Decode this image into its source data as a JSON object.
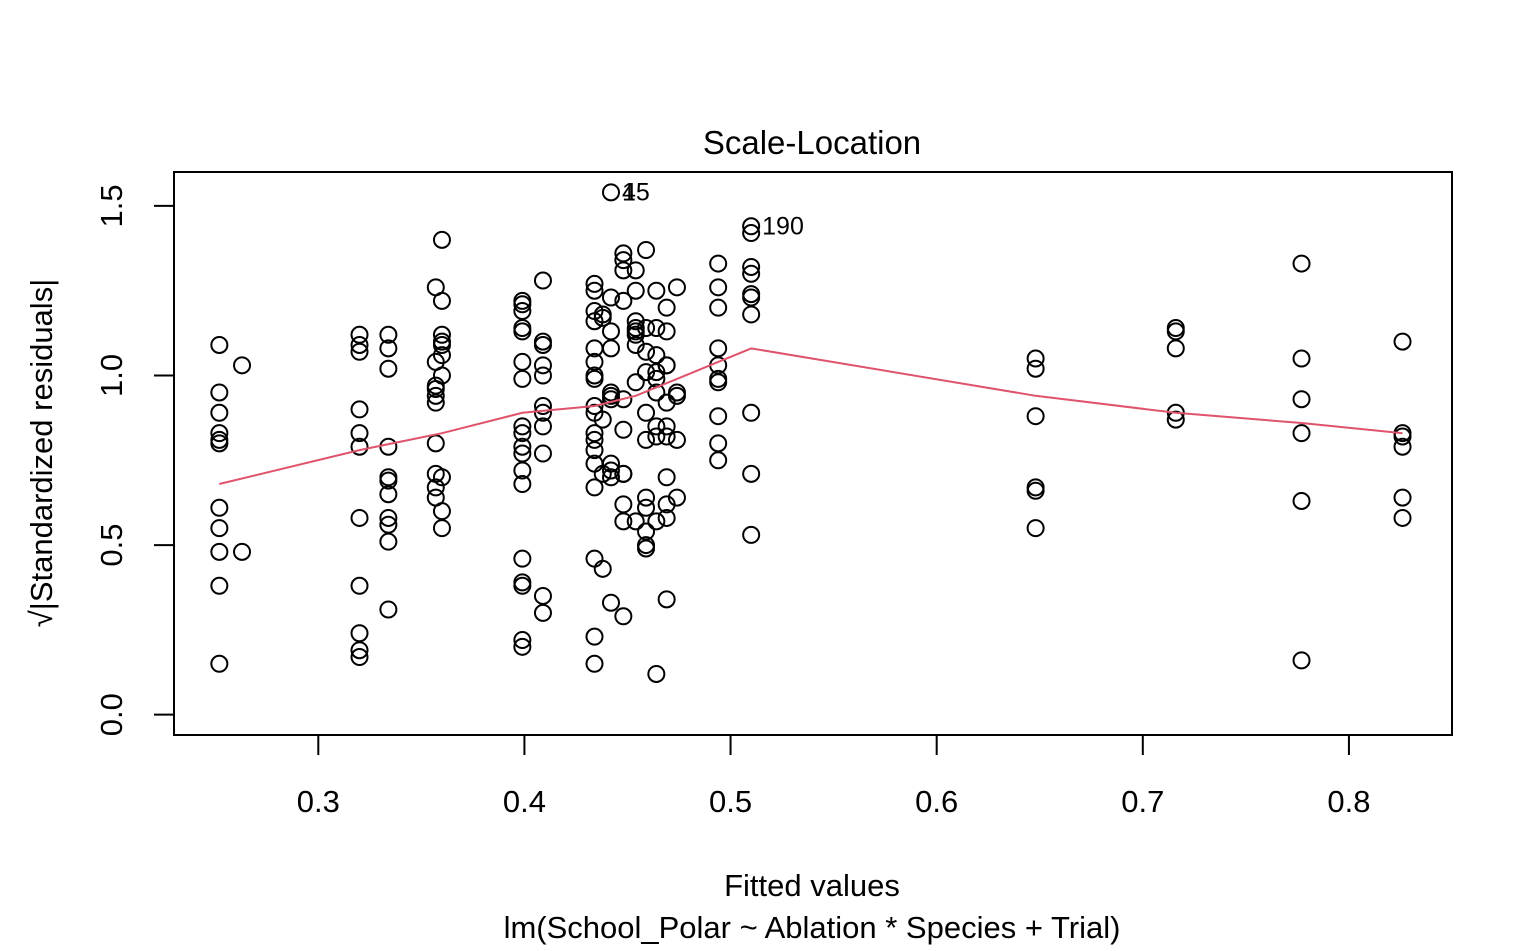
{
  "chart_data": {
    "type": "scatter",
    "title": "Scale-Location",
    "xlabel": "Fitted values",
    "subtitle": "lm(School_Polar ~ Ablation * Species + Trial)",
    "ylabel": "√|Standardized residuals|",
    "xlim": [
      0.23,
      0.85
    ],
    "ylim": [
      -0.06,
      1.6
    ],
    "xticks": [
      0.3,
      0.4,
      0.5,
      0.6,
      0.7,
      0.8
    ],
    "xtick_labels": [
      "0.3",
      "0.4",
      "0.5",
      "0.6",
      "0.7",
      "0.8"
    ],
    "yticks": [
      0.0,
      0.5,
      1.0,
      1.5
    ],
    "ytick_labels": [
      "0.0",
      "0.5",
      "1.0",
      "1.5"
    ],
    "grid": false,
    "point_style": "open-circle",
    "smoother_color": "#DF536B",
    "points": [
      {
        "x": 0.252,
        "y": 1.09
      },
      {
        "x": 0.252,
        "y": 0.95
      },
      {
        "x": 0.252,
        "y": 0.89
      },
      {
        "x": 0.252,
        "y": 0.83
      },
      {
        "x": 0.252,
        "y": 0.81
      },
      {
        "x": 0.252,
        "y": 0.8
      },
      {
        "x": 0.252,
        "y": 0.61
      },
      {
        "x": 0.252,
        "y": 0.55
      },
      {
        "x": 0.252,
        "y": 0.48
      },
      {
        "x": 0.252,
        "y": 0.38
      },
      {
        "x": 0.252,
        "y": 0.15
      },
      {
        "x": 0.263,
        "y": 1.03
      },
      {
        "x": 0.263,
        "y": 0.48
      },
      {
        "x": 0.32,
        "y": 1.12
      },
      {
        "x": 0.32,
        "y": 1.09
      },
      {
        "x": 0.32,
        "y": 1.07
      },
      {
        "x": 0.32,
        "y": 0.9
      },
      {
        "x": 0.32,
        "y": 0.83
      },
      {
        "x": 0.32,
        "y": 0.79
      },
      {
        "x": 0.32,
        "y": 0.58
      },
      {
        "x": 0.32,
        "y": 0.38
      },
      {
        "x": 0.32,
        "y": 0.24
      },
      {
        "x": 0.32,
        "y": 0.19
      },
      {
        "x": 0.32,
        "y": 0.17
      },
      {
        "x": 0.334,
        "y": 1.12
      },
      {
        "x": 0.334,
        "y": 1.08
      },
      {
        "x": 0.334,
        "y": 1.02
      },
      {
        "x": 0.334,
        "y": 0.79
      },
      {
        "x": 0.334,
        "y": 0.7
      },
      {
        "x": 0.334,
        "y": 0.69
      },
      {
        "x": 0.334,
        "y": 0.65
      },
      {
        "x": 0.334,
        "y": 0.58
      },
      {
        "x": 0.334,
        "y": 0.56
      },
      {
        "x": 0.334,
        "y": 0.51
      },
      {
        "x": 0.334,
        "y": 0.31
      },
      {
        "x": 0.357,
        "y": 1.26
      },
      {
        "x": 0.357,
        "y": 1.04
      },
      {
        "x": 0.357,
        "y": 0.97
      },
      {
        "x": 0.357,
        "y": 0.96
      },
      {
        "x": 0.357,
        "y": 0.94
      },
      {
        "x": 0.357,
        "y": 0.92
      },
      {
        "x": 0.357,
        "y": 0.8
      },
      {
        "x": 0.357,
        "y": 0.71
      },
      {
        "x": 0.357,
        "y": 0.67
      },
      {
        "x": 0.357,
        "y": 0.64
      },
      {
        "x": 0.36,
        "y": 1.4
      },
      {
        "x": 0.36,
        "y": 1.22
      },
      {
        "x": 0.36,
        "y": 1.12
      },
      {
        "x": 0.36,
        "y": 1.1
      },
      {
        "x": 0.36,
        "y": 1.09
      },
      {
        "x": 0.36,
        "y": 1.06
      },
      {
        "x": 0.36,
        "y": 1.0
      },
      {
        "x": 0.36,
        "y": 0.7
      },
      {
        "x": 0.36,
        "y": 0.6
      },
      {
        "x": 0.36,
        "y": 0.55
      },
      {
        "x": 0.399,
        "y": 1.22
      },
      {
        "x": 0.399,
        "y": 1.21
      },
      {
        "x": 0.399,
        "y": 1.19
      },
      {
        "x": 0.399,
        "y": 1.14
      },
      {
        "x": 0.399,
        "y": 1.13
      },
      {
        "x": 0.399,
        "y": 1.04
      },
      {
        "x": 0.399,
        "y": 0.99
      },
      {
        "x": 0.399,
        "y": 0.85
      },
      {
        "x": 0.399,
        "y": 0.83
      },
      {
        "x": 0.399,
        "y": 0.79
      },
      {
        "x": 0.399,
        "y": 0.77
      },
      {
        "x": 0.399,
        "y": 0.72
      },
      {
        "x": 0.399,
        "y": 0.68
      },
      {
        "x": 0.399,
        "y": 0.46
      },
      {
        "x": 0.399,
        "y": 0.39
      },
      {
        "x": 0.399,
        "y": 0.38
      },
      {
        "x": 0.399,
        "y": 0.22
      },
      {
        "x": 0.399,
        "y": 0.2
      },
      {
        "x": 0.409,
        "y": 1.28
      },
      {
        "x": 0.409,
        "y": 1.1
      },
      {
        "x": 0.409,
        "y": 1.09
      },
      {
        "x": 0.409,
        "y": 1.03
      },
      {
        "x": 0.409,
        "y": 1.0
      },
      {
        "x": 0.409,
        "y": 0.91
      },
      {
        "x": 0.409,
        "y": 0.89
      },
      {
        "x": 0.409,
        "y": 0.85
      },
      {
        "x": 0.409,
        "y": 0.77
      },
      {
        "x": 0.409,
        "y": 0.35
      },
      {
        "x": 0.409,
        "y": 0.3
      },
      {
        "x": 0.434,
        "y": 1.27
      },
      {
        "x": 0.434,
        "y": 1.25
      },
      {
        "x": 0.434,
        "y": 1.19
      },
      {
        "x": 0.434,
        "y": 1.16
      },
      {
        "x": 0.434,
        "y": 1.08
      },
      {
        "x": 0.434,
        "y": 1.04
      },
      {
        "x": 0.434,
        "y": 1.0
      },
      {
        "x": 0.434,
        "y": 0.99
      },
      {
        "x": 0.434,
        "y": 0.91
      },
      {
        "x": 0.434,
        "y": 0.89
      },
      {
        "x": 0.434,
        "y": 0.83
      },
      {
        "x": 0.434,
        "y": 0.81
      },
      {
        "x": 0.434,
        "y": 0.78
      },
      {
        "x": 0.434,
        "y": 0.74
      },
      {
        "x": 0.434,
        "y": 0.67
      },
      {
        "x": 0.434,
        "y": 0.46
      },
      {
        "x": 0.434,
        "y": 0.23
      },
      {
        "x": 0.434,
        "y": 0.15
      },
      {
        "x": 0.438,
        "y": 1.18
      },
      {
        "x": 0.438,
        "y": 1.17
      },
      {
        "x": 0.438,
        "y": 0.87
      },
      {
        "x": 0.438,
        "y": 0.71
      },
      {
        "x": 0.438,
        "y": 0.43
      },
      {
        "x": 0.442,
        "y": 1.54
      },
      {
        "x": 0.442,
        "y": 1.23
      },
      {
        "x": 0.442,
        "y": 1.13
      },
      {
        "x": 0.442,
        "y": 1.08
      },
      {
        "x": 0.442,
        "y": 0.95
      },
      {
        "x": 0.442,
        "y": 0.94
      },
      {
        "x": 0.442,
        "y": 0.93
      },
      {
        "x": 0.442,
        "y": 0.74
      },
      {
        "x": 0.442,
        "y": 0.72
      },
      {
        "x": 0.442,
        "y": 0.7
      },
      {
        "x": 0.442,
        "y": 0.33
      },
      {
        "x": 0.448,
        "y": 1.36
      },
      {
        "x": 0.448,
        "y": 1.34
      },
      {
        "x": 0.448,
        "y": 1.31
      },
      {
        "x": 0.448,
        "y": 1.22
      },
      {
        "x": 0.448,
        "y": 0.93
      },
      {
        "x": 0.448,
        "y": 0.84
      },
      {
        "x": 0.448,
        "y": 0.71
      },
      {
        "x": 0.448,
        "y": 0.71
      },
      {
        "x": 0.448,
        "y": 0.62
      },
      {
        "x": 0.448,
        "y": 0.57
      },
      {
        "x": 0.448,
        "y": 0.29
      },
      {
        "x": 0.454,
        "y": 1.31
      },
      {
        "x": 0.454,
        "y": 1.25
      },
      {
        "x": 0.454,
        "y": 1.16
      },
      {
        "x": 0.454,
        "y": 1.14
      },
      {
        "x": 0.454,
        "y": 1.13
      },
      {
        "x": 0.454,
        "y": 1.12
      },
      {
        "x": 0.454,
        "y": 1.09
      },
      {
        "x": 0.454,
        "y": 0.98
      },
      {
        "x": 0.454,
        "y": 0.57
      },
      {
        "x": 0.459,
        "y": 1.37
      },
      {
        "x": 0.459,
        "y": 1.14
      },
      {
        "x": 0.459,
        "y": 1.07
      },
      {
        "x": 0.459,
        "y": 1.01
      },
      {
        "x": 0.459,
        "y": 0.89
      },
      {
        "x": 0.459,
        "y": 0.81
      },
      {
        "x": 0.459,
        "y": 0.64
      },
      {
        "x": 0.459,
        "y": 0.61
      },
      {
        "x": 0.459,
        "y": 0.54
      },
      {
        "x": 0.459,
        "y": 0.5
      },
      {
        "x": 0.459,
        "y": 0.49
      },
      {
        "x": 0.464,
        "y": 1.25
      },
      {
        "x": 0.464,
        "y": 1.14
      },
      {
        "x": 0.464,
        "y": 1.06
      },
      {
        "x": 0.464,
        "y": 1.01
      },
      {
        "x": 0.464,
        "y": 0.99
      },
      {
        "x": 0.464,
        "y": 0.95
      },
      {
        "x": 0.464,
        "y": 0.85
      },
      {
        "x": 0.464,
        "y": 0.82
      },
      {
        "x": 0.464,
        "y": 0.57
      },
      {
        "x": 0.464,
        "y": 0.12
      },
      {
        "x": 0.469,
        "y": 1.2
      },
      {
        "x": 0.469,
        "y": 1.13
      },
      {
        "x": 0.469,
        "y": 1.03
      },
      {
        "x": 0.469,
        "y": 1.03
      },
      {
        "x": 0.469,
        "y": 0.92
      },
      {
        "x": 0.469,
        "y": 0.85
      },
      {
        "x": 0.469,
        "y": 0.82
      },
      {
        "x": 0.469,
        "y": 0.7
      },
      {
        "x": 0.469,
        "y": 0.62
      },
      {
        "x": 0.469,
        "y": 0.58
      },
      {
        "x": 0.469,
        "y": 0.34
      },
      {
        "x": 0.474,
        "y": 1.26
      },
      {
        "x": 0.474,
        "y": 0.95
      },
      {
        "x": 0.474,
        "y": 0.94
      },
      {
        "x": 0.474,
        "y": 0.81
      },
      {
        "x": 0.474,
        "y": 0.64
      },
      {
        "x": 0.494,
        "y": 1.33
      },
      {
        "x": 0.494,
        "y": 1.26
      },
      {
        "x": 0.494,
        "y": 1.2
      },
      {
        "x": 0.494,
        "y": 1.08
      },
      {
        "x": 0.494,
        "y": 1.03
      },
      {
        "x": 0.494,
        "y": 0.99
      },
      {
        "x": 0.494,
        "y": 0.98
      },
      {
        "x": 0.494,
        "y": 0.88
      },
      {
        "x": 0.494,
        "y": 0.8
      },
      {
        "x": 0.494,
        "y": 0.75
      },
      {
        "x": 0.51,
        "y": 1.44
      },
      {
        "x": 0.51,
        "y": 1.42
      },
      {
        "x": 0.51,
        "y": 1.32
      },
      {
        "x": 0.51,
        "y": 1.3
      },
      {
        "x": 0.51,
        "y": 1.24
      },
      {
        "x": 0.51,
        "y": 1.23
      },
      {
        "x": 0.51,
        "y": 1.18
      },
      {
        "x": 0.51,
        "y": 0.89
      },
      {
        "x": 0.51,
        "y": 0.71
      },
      {
        "x": 0.51,
        "y": 0.53
      },
      {
        "x": 0.648,
        "y": 1.05
      },
      {
        "x": 0.648,
        "y": 1.02
      },
      {
        "x": 0.648,
        "y": 0.88
      },
      {
        "x": 0.648,
        "y": 0.67
      },
      {
        "x": 0.648,
        "y": 0.66
      },
      {
        "x": 0.648,
        "y": 0.55
      },
      {
        "x": 0.716,
        "y": 1.14
      },
      {
        "x": 0.716,
        "y": 1.13
      },
      {
        "x": 0.716,
        "y": 1.08
      },
      {
        "x": 0.716,
        "y": 0.89
      },
      {
        "x": 0.716,
        "y": 0.87
      },
      {
        "x": 0.777,
        "y": 1.33
      },
      {
        "x": 0.777,
        "y": 1.05
      },
      {
        "x": 0.777,
        "y": 0.93
      },
      {
        "x": 0.777,
        "y": 0.83
      },
      {
        "x": 0.777,
        "y": 0.63
      },
      {
        "x": 0.777,
        "y": 0.16
      },
      {
        "x": 0.826,
        "y": 1.1
      },
      {
        "x": 0.826,
        "y": 0.83
      },
      {
        "x": 0.826,
        "y": 0.82
      },
      {
        "x": 0.826,
        "y": 0.79
      },
      {
        "x": 0.826,
        "y": 0.64
      },
      {
        "x": 0.826,
        "y": 0.58
      }
    ],
    "smoother": [
      {
        "x": 0.252,
        "y": 0.68
      },
      {
        "x": 0.32,
        "y": 0.78
      },
      {
        "x": 0.36,
        "y": 0.83
      },
      {
        "x": 0.399,
        "y": 0.89
      },
      {
        "x": 0.434,
        "y": 0.91
      },
      {
        "x": 0.454,
        "y": 0.94
      },
      {
        "x": 0.474,
        "y": 0.99
      },
      {
        "x": 0.494,
        "y": 1.04
      },
      {
        "x": 0.51,
        "y": 1.08
      },
      {
        "x": 0.648,
        "y": 0.94
      },
      {
        "x": 0.716,
        "y": 0.89
      },
      {
        "x": 0.777,
        "y": 0.86
      },
      {
        "x": 0.826,
        "y": 0.83
      }
    ],
    "annotations": [
      {
        "text": "15",
        "x": 0.442,
        "y": 1.54
      },
      {
        "text": "4",
        "x": 0.442,
        "y": 1.54
      },
      {
        "text": "190",
        "x": 0.51,
        "y": 1.44
      }
    ]
  }
}
